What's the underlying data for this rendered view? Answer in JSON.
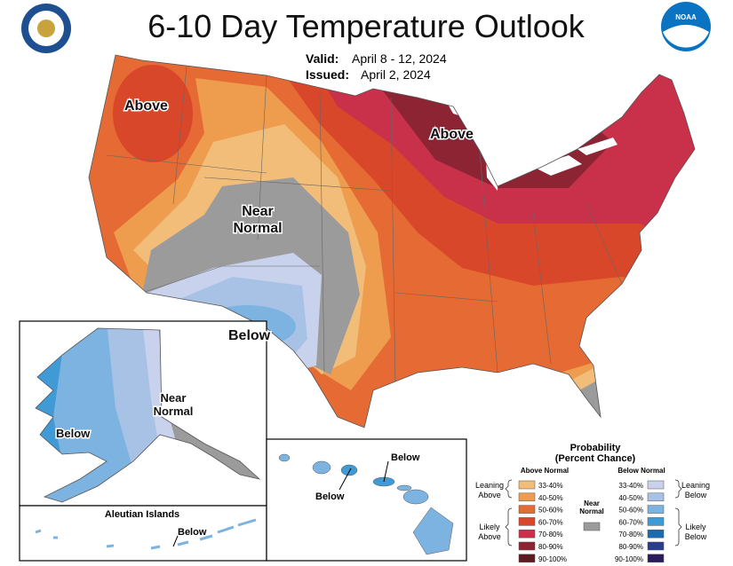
{
  "header": {
    "title": "6-10 Day Temperature Outlook",
    "valid_label": "Valid:",
    "valid": "April 8 - 12, 2024",
    "issued_label": "Issued:",
    "issued": "April 2, 2024"
  },
  "map_labels": {
    "above_west": "Above",
    "above_east": "Above",
    "near_normal": [
      "Near",
      "Normal"
    ],
    "below": "Below",
    "alaska_near_normal": [
      "Near",
      "Normal"
    ],
    "alaska_below": "Below",
    "hawaii_below_1": "Below",
    "hawaii_below_2": "Below",
    "aleutian_title": "Aleutian Islands",
    "aleutian_below": "Below"
  },
  "legend": {
    "title": [
      "Probability",
      "(Percent Chance)"
    ],
    "above_header": "Above Normal",
    "below_header": "Below Normal",
    "near_normal": [
      "Near",
      "Normal"
    ],
    "near_color": "#9b9b9b",
    "leaning_above": [
      "Leaning",
      "Above"
    ],
    "likely_above": [
      "Likely",
      "Above"
    ],
    "leaning_below": [
      "Leaning",
      "Below"
    ],
    "likely_below": [
      "Likely",
      "Below"
    ],
    "above": [
      {
        "label": "33-40%",
        "color": "#f2bd78"
      },
      {
        "label": "40-50%",
        "color": "#ee9c4e"
      },
      {
        "label": "50-60%",
        "color": "#e56a33"
      },
      {
        "label": "60-70%",
        "color": "#d9472a"
      },
      {
        "label": "70-80%",
        "color": "#c9304a"
      },
      {
        "label": "80-90%",
        "color": "#8c2434"
      },
      {
        "label": "90-100%",
        "color": "#5e1a22"
      }
    ],
    "below": [
      {
        "label": "33-40%",
        "color": "#c8d2ec"
      },
      {
        "label": "40-50%",
        "color": "#a7c2e5"
      },
      {
        "label": "50-60%",
        "color": "#7db3e0"
      },
      {
        "label": "60-70%",
        "color": "#3f9ad6"
      },
      {
        "label": "70-80%",
        "color": "#1b6bb0"
      },
      {
        "label": "80-90%",
        "color": "#283d8e"
      },
      {
        "label": "90-100%",
        "color": "#2b1a5c"
      }
    ]
  }
}
